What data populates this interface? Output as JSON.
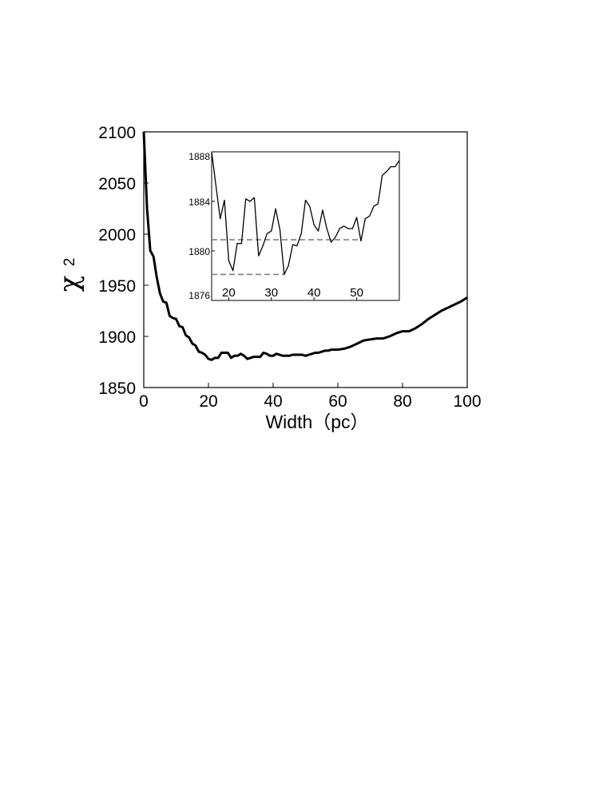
{
  "chart_data": [
    {
      "type": "line",
      "title": "",
      "xlabel": "Width（pc）",
      "ylabel": "χ",
      "ylabel_superscript": "2",
      "xlim": [
        0,
        100
      ],
      "ylim": [
        1850,
        2100
      ],
      "xticks": [
        0,
        20,
        40,
        60,
        80,
        100
      ],
      "yticks": [
        1850,
        1900,
        1950,
        2000,
        2050,
        2100
      ],
      "grid": false,
      "series": [
        {
          "color": "#000000",
          "x": [
            0,
            1,
            2,
            3,
            4,
            5,
            6,
            7,
            8,
            9,
            10,
            11,
            12,
            13,
            14,
            15,
            16,
            17,
            18,
            19,
            20,
            21,
            22,
            23,
            24,
            25,
            26,
            27,
            28,
            29,
            30,
            31,
            32,
            33,
            34,
            35,
            36,
            37,
            38,
            39,
            40,
            41,
            42,
            43,
            44,
            45,
            46,
            47,
            48,
            49,
            50,
            51,
            52,
            53,
            54,
            55,
            56,
            57,
            58,
            59,
            60,
            62,
            64,
            66,
            68,
            70,
            72,
            74,
            76,
            78,
            80,
            82,
            84,
            86,
            88,
            90,
            92,
            94,
            96,
            98,
            100
          ],
          "y": [
            2100,
            2025,
            1984,
            1978,
            1958,
            1942,
            1934,
            1933,
            1920,
            1918,
            1917,
            1910,
            1909,
            1901,
            1899,
            1893,
            1891,
            1885,
            1884,
            1882,
            1878,
            1877,
            1879,
            1879,
            1884,
            1884,
            1884,
            1879,
            1881,
            1881,
            1883,
            1881,
            1878,
            1879,
            1880,
            1880,
            1880,
            1884,
            1883,
            1881,
            1881,
            1883,
            1882,
            1881,
            1881,
            1881,
            1882,
            1882,
            1882,
            1882,
            1881,
            1882,
            1883,
            1884,
            1884,
            1885,
            1886,
            1886,
            1887,
            1887,
            1887,
            1888,
            1890,
            1893,
            1896,
            1897,
            1898,
            1898,
            1900,
            1903,
            1905,
            1905,
            1908,
            1912,
            1917,
            1921,
            1925,
            1928,
            1931,
            1934,
            1938
          ]
        }
      ]
    },
    {
      "type": "line",
      "title": "",
      "xlabel": "",
      "ylabel": "",
      "xlim": [
        16,
        60
      ],
      "ylim": [
        1876,
        1888
      ],
      "xticks": [
        20,
        30,
        40,
        50
      ],
      "yticks": [
        1876,
        1880,
        1884,
        1888
      ],
      "grid": false,
      "series": [
        {
          "color": "#000000",
          "x": [
            16,
            17,
            18,
            19,
            20,
            21,
            22,
            23,
            24,
            25,
            26,
            27,
            28,
            29,
            30,
            31,
            32,
            33,
            34,
            35,
            36,
            37,
            38,
            39,
            40,
            41,
            42,
            43,
            44,
            45,
            46,
            47,
            48,
            49,
            50,
            51,
            52,
            53,
            54,
            55,
            56,
            57,
            58,
            59,
            60
          ],
          "y": [
            1888,
            1885.3,
            1882.6,
            1884.1,
            1879.2,
            1878.4,
            1880.6,
            1880.6,
            1884.2,
            1884,
            1884.3,
            1879.6,
            1880.4,
            1881.4,
            1881.6,
            1883.4,
            1881.7,
            1878.1,
            1878.8,
            1880.5,
            1880.4,
            1881.4,
            1884.1,
            1883.6,
            1882.1,
            1881.6,
            1883.3,
            1881.8,
            1880.7,
            1881.1,
            1881.8,
            1882,
            1881.8,
            1881.8,
            1882.7,
            1880.8,
            1882.6,
            1882.8,
            1883.6,
            1883.8,
            1886.1,
            1886.4,
            1886.8,
            1886.8,
            1887.3
          ]
        }
      ],
      "reference_lines": [
        {
          "y": 1880.9,
          "x_range": [
            16,
            51
          ],
          "style": "dashed",
          "color": "#808080"
        },
        {
          "y": 1878.1,
          "x_range": [
            16,
            33
          ],
          "style": "dashed",
          "color": "#808080"
        }
      ]
    }
  ]
}
